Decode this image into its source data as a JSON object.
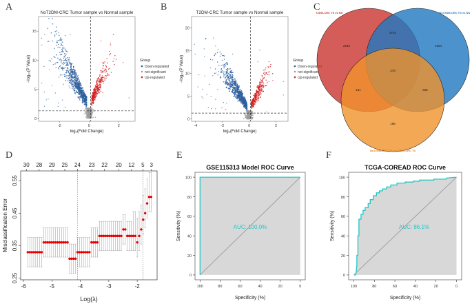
{
  "panel_letters": [
    "A",
    "B",
    "C",
    "D",
    "E",
    "F"
  ],
  "chart_data": [
    {
      "panel": "A",
      "type": "scatter",
      "title": "NoT2DM-CRC Tumor sample vs  Normal sample",
      "xlabel": "log₂(Fold Change)",
      "ylabel": "−log₁₀(P Value)",
      "x_ticks": [
        "-2",
        "0",
        "2"
      ],
      "x_tick_values": [
        -2,
        0,
        2
      ],
      "y_ticks": [
        "0",
        "5",
        "10",
        "15"
      ],
      "y_tick_values": [
        0,
        5,
        10,
        15
      ],
      "xlim": [
        -3.4,
        3.1
      ],
      "ylim": [
        -0.5,
        17.5
      ],
      "threshold_x": 0.1,
      "threshold_y": 1.3,
      "legend_title": "Group",
      "legend": [
        {
          "name": "Down-regulated",
          "color": "#2e5f9e"
        },
        {
          "name": "not-significant",
          "color": "#9a9a9a"
        },
        {
          "name": "Up-regulated",
          "color": "#d62020"
        }
      ]
    },
    {
      "panel": "B",
      "type": "scatter",
      "title": "T2DM-CRC Tumor sample vs  Normal sample",
      "xlabel": "log₂(Fold Change)",
      "ylabel": "−log₁₀(P Value)",
      "x_ticks": [
        "-4",
        "-2",
        "0",
        "2"
      ],
      "x_tick_values": [
        -4,
        -2,
        0,
        2
      ],
      "y_ticks": [
        "0",
        "5",
        "10",
        "15",
        "20"
      ],
      "y_tick_values": [
        0,
        5,
        10,
        15,
        20
      ],
      "xlim": [
        -4.3,
        2.9
      ],
      "ylim": [
        -0.5,
        22.5
      ],
      "threshold_x": 0.1,
      "threshold_y": 1.3,
      "legend_title": "Group",
      "legend": [
        {
          "name": "Down-regulated",
          "color": "#2e5f9e"
        },
        {
          "name": "not-significant",
          "color": "#9a9a9a"
        },
        {
          "name": "Up-regulated",
          "color": "#d62020"
        }
      ]
    },
    {
      "panel": "C",
      "type": "venn",
      "sets": [
        {
          "name": "T2DM-CRC TS vs NS",
          "color": "#c9352f"
        },
        {
          "name": "NoT2DM-CRC TS vs NS",
          "color": "#1f78c1"
        },
        {
          "name": "NoT2DM-CRC TS vs  T2DM-CRC TS",
          "color": "#f0922c"
        }
      ],
      "regions": {
        "A_only": "2646",
        "B_only": "1654",
        "C_only": "166",
        "AB": "4751",
        "AC": "131",
        "BC": "635",
        "ABC": "278"
      }
    },
    {
      "panel": "D",
      "type": "errorbar",
      "xlabel": "Log(λ)",
      "ylabel": "Misclassification Error",
      "x_ticks": [
        "-6",
        "-5",
        "-4",
        "-3",
        "-2"
      ],
      "x_tick_values": [
        -6,
        -5,
        -4,
        -3,
        -2
      ],
      "y_ticks": [
        "0.25",
        "0.35",
        "0.45",
        "0.55"
      ],
      "y_tick_values": [
        0.25,
        0.35,
        0.45,
        0.55
      ],
      "xlim": [
        -6.1,
        -1.3
      ],
      "ylim": [
        0.245,
        0.58
      ],
      "top_ticks": [
        "30",
        "28",
        "29",
        "25",
        "24",
        "23",
        "22",
        "20",
        "12",
        "5",
        "3"
      ],
      "top_tick_values": [
        -5.9,
        -5.45,
        -5.0,
        -4.55,
        -4.1,
        -3.6,
        -3.15,
        -2.65,
        -2.2,
        -1.8,
        -1.5
      ],
      "vlines": [
        -4.1,
        -1.8
      ],
      "log_lambda": [
        -5.85,
        -5.78,
        -5.71,
        -5.64,
        -5.57,
        -5.5,
        -5.43,
        -5.36,
        -5.29,
        -5.22,
        -5.15,
        -5.08,
        -5.01,
        -4.94,
        -4.87,
        -4.8,
        -4.73,
        -4.66,
        -4.59,
        -4.52,
        -4.45,
        -4.38,
        -4.31,
        -4.24,
        -4.17,
        -4.1,
        -4.03,
        -3.96,
        -3.89,
        -3.82,
        -3.75,
        -3.68,
        -3.61,
        -3.54,
        -3.47,
        -3.4,
        -3.33,
        -3.26,
        -3.19,
        -3.12,
        -3.05,
        -2.98,
        -2.91,
        -2.84,
        -2.77,
        -2.7,
        -2.63,
        -2.56,
        -2.49,
        -2.42,
        -2.35,
        -2.28,
        -2.21,
        -2.14,
        -2.07,
        -2.0,
        -1.93,
        -1.86,
        -1.79,
        -1.72,
        -1.65,
        -1.58,
        -1.51
      ],
      "error": [
        0.33,
        0.33,
        0.33,
        0.33,
        0.33,
        0.33,
        0.33,
        0.33,
        0.36,
        0.36,
        0.36,
        0.36,
        0.36,
        0.36,
        0.36,
        0.36,
        0.36,
        0.36,
        0.36,
        0.36,
        0.36,
        0.31,
        0.31,
        0.31,
        0.31,
        0.33,
        0.33,
        0.33,
        0.33,
        0.33,
        0.33,
        0.33,
        0.36,
        0.36,
        0.36,
        0.36,
        0.38,
        0.38,
        0.38,
        0.38,
        0.38,
        0.38,
        0.38,
        0.38,
        0.38,
        0.38,
        0.38,
        0.38,
        0.4,
        0.4,
        0.38,
        0.38,
        0.38,
        0.38,
        0.38,
        0.36,
        0.38,
        0.4,
        0.43,
        0.45,
        0.48,
        0.5,
        0.5
      ],
      "error_sd": 0.045
    },
    {
      "panel": "E",
      "type": "roc",
      "title": "GSE115313 Model ROC Curve",
      "xlabel": "Specificity (%)",
      "ylabel": "Sensitivity (%)",
      "x_ticks": [
        "100",
        "80",
        "60",
        "40",
        "20",
        "0"
      ],
      "x_tick_values": [
        100,
        80,
        60,
        40,
        20,
        0
      ],
      "y_ticks": [
        "0",
        "20",
        "40",
        "60",
        "80",
        "100"
      ],
      "y_tick_values": [
        0,
        20,
        40,
        60,
        80,
        100
      ],
      "auc_label": "AUC: 100.0%",
      "curve_color": "#21c6c6",
      "specificity": [
        100,
        100,
        0
      ],
      "sensitivity": [
        0,
        100,
        100
      ]
    },
    {
      "panel": "F",
      "type": "roc",
      "title": "TCGA-COREAD ROC Curve",
      "xlabel": "Specificity (%)",
      "ylabel": "Sensitivity (%)",
      "x_ticks": [
        "100",
        "80",
        "60",
        "40",
        "20",
        "0"
      ],
      "x_tick_values": [
        100,
        80,
        60,
        40,
        20,
        0
      ],
      "y_ticks": [
        "0",
        "20",
        "40",
        "60",
        "80",
        "100"
      ],
      "y_tick_values": [
        0,
        20,
        40,
        60,
        80,
        100
      ],
      "auc_label": "AUC: 86.1%",
      "curve_color": "#21c6c6",
      "specificity": [
        100,
        98,
        97,
        97,
        96,
        96,
        95,
        95,
        93,
        93,
        91,
        91,
        89,
        89,
        86,
        86,
        84,
        84,
        81,
        81,
        78,
        78,
        75,
        75,
        72,
        72,
        68,
        68,
        64,
        64,
        58,
        58,
        50,
        50,
        42,
        42,
        36,
        36,
        22,
        22,
        10,
        10,
        0
      ],
      "sensitivity": [
        0,
        0,
        10,
        20,
        20,
        40,
        40,
        57,
        57,
        62,
        62,
        66,
        66,
        69,
        69,
        73,
        73,
        77,
        77,
        81,
        81,
        84,
        84,
        86,
        86,
        88,
        88,
        90,
        90,
        92,
        92,
        94,
        94,
        95,
        95,
        96,
        96,
        97,
        97,
        98,
        98,
        99,
        100
      ],
      "has_diagonal": true
    }
  ],
  "colors": {
    "down": "#2e5f9e",
    "nonsig": "#9a9a9a",
    "up": "#d62020",
    "roc_fill": "#d8d8d8",
    "lasso_point": "#e60000"
  }
}
